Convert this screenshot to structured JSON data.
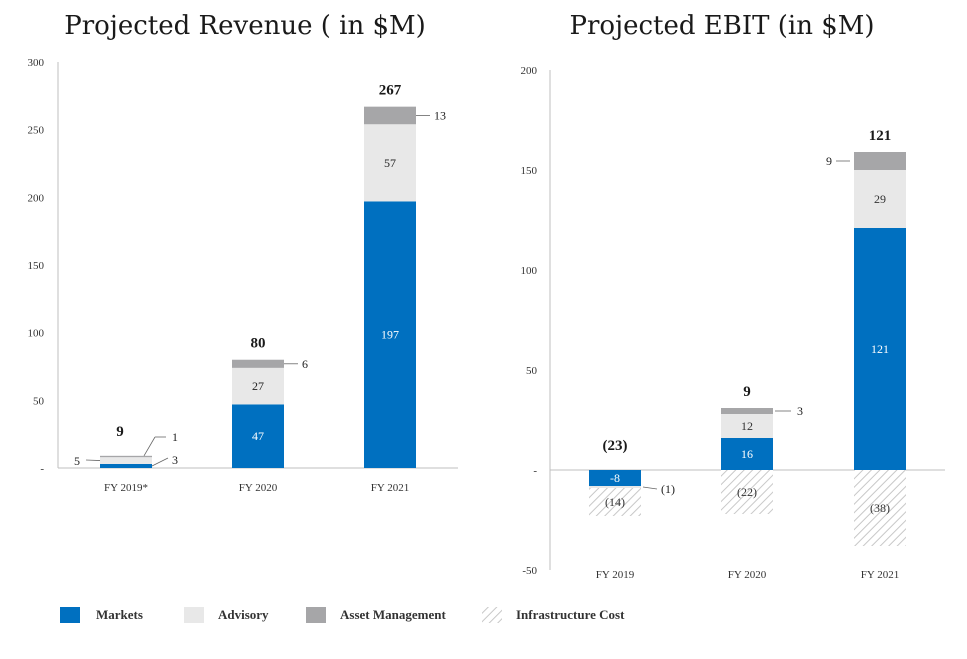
{
  "colors": {
    "markets": "#0070C0",
    "advisory": "#E8E8E8",
    "asset_management": "#A6A6A8",
    "infrastructure": "#C8C8C8",
    "axis": "#BFBFBF"
  },
  "legend": [
    {
      "name": "Markets",
      "swatch": "markets"
    },
    {
      "name": "Advisory",
      "swatch": "advisory"
    },
    {
      "name": "Asset Management",
      "swatch": "asset_management"
    },
    {
      "name": "Infrastructure Cost",
      "swatch": "infrastructure"
    }
  ],
  "chart_data": [
    {
      "type": "bar",
      "stacked": true,
      "title": "Projected Revenue ( in $M)",
      "categories": [
        "FY 2019*",
        "FY 2020",
        "FY 2021"
      ],
      "ylim": [
        0,
        300
      ],
      "yticks": [
        "-",
        "50",
        "100",
        "150",
        "200",
        "250",
        "300"
      ],
      "series": [
        {
          "name": "Markets",
          "values": [
            3,
            47,
            197
          ],
          "labels": [
            "3",
            "47",
            "197"
          ]
        },
        {
          "name": "Advisory",
          "values": [
            5,
            27,
            57
          ],
          "labels": [
            "5",
            "27",
            "57"
          ]
        },
        {
          "name": "Asset Management",
          "values": [
            1,
            6,
            13
          ],
          "labels": [
            "1",
            "6",
            "13"
          ]
        }
      ],
      "totals": [
        "9",
        "80",
        "267"
      ],
      "grid": false
    },
    {
      "type": "bar",
      "stacked": true,
      "title": "Projected EBIT (in $M)",
      "categories": [
        "FY 2019",
        "FY 2020",
        "FY 2021"
      ],
      "ylim": [
        -50,
        200
      ],
      "yticks": [
        "-50",
        "-",
        "50",
        "100",
        "150",
        "200"
      ],
      "series": [
        {
          "name": "Markets",
          "values": [
            -8,
            16,
            121
          ],
          "labels": [
            "-8",
            "16",
            "121"
          ]
        },
        {
          "name": "Advisory",
          "values": [
            -1,
            12,
            29
          ],
          "labels": [
            "(1)",
            "12",
            "29"
          ]
        },
        {
          "name": "Asset Management",
          "values": [
            0,
            3,
            9
          ],
          "labels": [
            "",
            "3",
            "9"
          ]
        },
        {
          "name": "Infrastructure Cost",
          "values": [
            -14,
            -22,
            -38
          ],
          "labels": [
            "(14)",
            "(22)",
            "(38)"
          ]
        }
      ],
      "totals": [
        "(23)",
        "9",
        "121"
      ],
      "grid": false
    }
  ]
}
